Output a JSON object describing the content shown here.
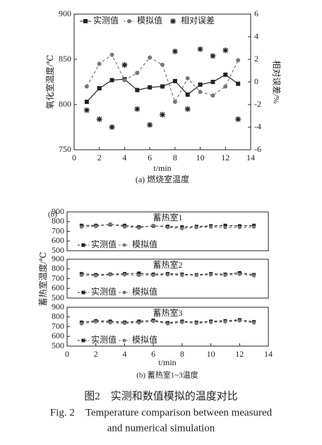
{
  "chart_data": [
    {
      "type": "line",
      "caption": "(a) 燃烧室温度",
      "xlabel": "t/min",
      "ylabel": "氧化室温度/℃",
      "y2label": "相对误差/%",
      "x": [
        1,
        2,
        3,
        4,
        5,
        6,
        7,
        8,
        9,
        10,
        11,
        12,
        13
      ],
      "xlim": [
        0,
        14
      ],
      "xticks": [
        0,
        2,
        4,
        6,
        8,
        10,
        12,
        14
      ],
      "ylim": [
        750,
        900
      ],
      "yticks": [
        750,
        800,
        850,
        900
      ],
      "y2lim": [
        -6,
        6
      ],
      "y2ticks": [
        -6,
        -4,
        -2,
        0,
        2,
        4,
        6
      ],
      "series": [
        {
          "name": "实测值",
          "color": "#222222",
          "marker": "square",
          "line": "solid",
          "values": [
            803,
            818,
            827,
            828,
            816,
            819,
            820,
            826,
            811,
            822,
            825,
            833,
            823
          ]
        },
        {
          "name": "模拟值",
          "color": "#777777",
          "marker": "circle",
          "line": "dash",
          "values": [
            820,
            845,
            855,
            827,
            835,
            852,
            844,
            803,
            829,
            814,
            810,
            820,
            849
          ]
        },
        {
          "name": "相对误差",
          "color": "#222222",
          "marker": "star",
          "line": "none",
          "axis": "y2",
          "values": [
            -2.5,
            -3.3,
            -4,
            1.5,
            -2.4,
            -3.8,
            -2.9,
            2.7,
            -2.4,
            2.9,
            2.3,
            2.8,
            -3.3
          ]
        }
      ]
    },
    {
      "type": "line",
      "title": "蓄热室1",
      "x": [
        1,
        2,
        3,
        4,
        5,
        6,
        7,
        8,
        9,
        10,
        11,
        12,
        13
      ],
      "xlim": [
        0,
        14
      ],
      "ylim": [
        500,
        900
      ],
      "yticks": [
        500,
        600,
        700,
        800,
        900
      ],
      "series": [
        {
          "name": "实测值",
          "color": "#222222",
          "marker": "square",
          "line": "dash",
          "values": [
            760,
            760,
            770,
            760,
            745,
            755,
            750,
            745,
            750,
            755,
            760,
            755,
            760
          ]
        },
        {
          "name": "模拟值",
          "color": "#777777",
          "marker": "circle",
          "line": "dash",
          "values": [
            745,
            750,
            775,
            745,
            735,
            760,
            740,
            730,
            740,
            745,
            740,
            740,
            745
          ]
        }
      ]
    },
    {
      "type": "line",
      "title": "蓄热室2",
      "x": [
        1,
        2,
        3,
        4,
        5,
        6,
        7,
        8,
        9,
        10,
        11,
        12,
        13
      ],
      "xlim": [
        0,
        14
      ],
      "ylim": [
        500,
        900
      ],
      "yticks": [
        500,
        600,
        700,
        800,
        900
      ],
      "series": [
        {
          "name": "实测值",
          "color": "#222222",
          "marker": "square",
          "line": "dash",
          "values": [
            750,
            740,
            745,
            750,
            755,
            745,
            750,
            745,
            740,
            750,
            745,
            760,
            740
          ]
        },
        {
          "name": "模拟值",
          "color": "#777777",
          "marker": "circle",
          "line": "dash",
          "values": [
            735,
            730,
            740,
            740,
            735,
            735,
            740,
            735,
            735,
            740,
            735,
            745,
            730
          ]
        }
      ]
    },
    {
      "type": "line",
      "title": "蓄热室3",
      "x": [
        1,
        2,
        3,
        4,
        5,
        6,
        7,
        8,
        9,
        10,
        11,
        12,
        13
      ],
      "xlim": [
        0,
        14
      ],
      "xticks": [
        0,
        2,
        4,
        6,
        8,
        10,
        12,
        14
      ],
      "ylim": [
        500,
        900
      ],
      "yticks": [
        500,
        600,
        700,
        800,
        900
      ],
      "series": [
        {
          "name": "实测值",
          "color": "#222222",
          "marker": "square",
          "line": "dash",
          "values": [
            745,
            760,
            755,
            745,
            755,
            765,
            740,
            755,
            745,
            755,
            760,
            770,
            750
          ]
        },
        {
          "name": "模拟值",
          "color": "#777777",
          "marker": "circle",
          "line": "dash",
          "values": [
            730,
            750,
            740,
            735,
            740,
            755,
            730,
            745,
            735,
            745,
            750,
            760,
            740
          ]
        }
      ]
    }
  ],
  "figure_b": {
    "label": "(b)",
    "ylabel": "蓄热室温度/℃",
    "xlabel": "t/min",
    "caption": "(b) 蓄热室1~3温度"
  },
  "figure_caption": {
    "cn": "图2　实测和数值模拟的温度对比",
    "en_line1": "Fig. 2　Temperature comparison between measured",
    "en_line2": "and numerical simulation"
  }
}
